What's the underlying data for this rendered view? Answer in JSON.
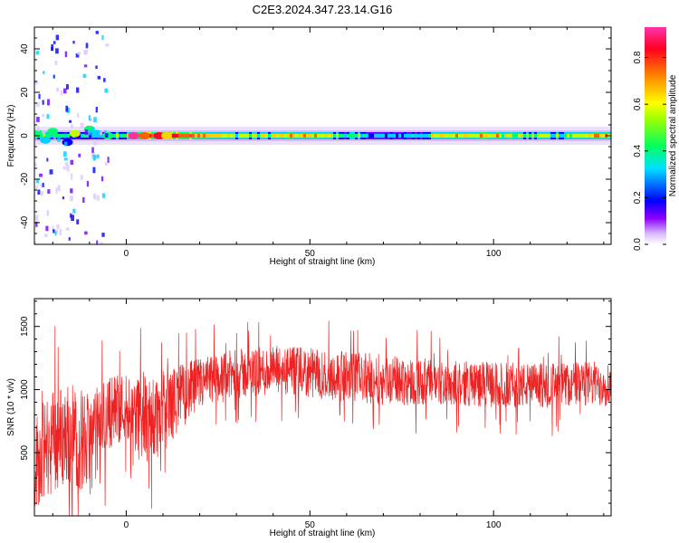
{
  "title": "C2E3.2024.347.23.14.G16",
  "chart_data": [
    {
      "type": "heatmap",
      "xlabel": "Height of straight line (km)",
      "ylabel": "Frequency (Hz)",
      "xlim": [
        -25,
        132
      ],
      "ylim": [
        -50,
        50
      ],
      "xticks": [
        0,
        50,
        100
      ],
      "yticks": [
        -40,
        -20,
        0,
        20,
        40
      ],
      "colorbar": {
        "label": "Normalized spectral amplitude",
        "range": [
          0,
          0.93
        ],
        "ticks": [
          0.0,
          0.2,
          0.4,
          0.6,
          0.8
        ],
        "colormap": [
          "#8c00ff",
          "#0000ff",
          "#00e0ff",
          "#00ff40",
          "#ffff00",
          "#ff8000",
          "#ff0040",
          "#ff33aa"
        ]
      },
      "band_center_hz": 0,
      "grid": false
    },
    {
      "type": "line",
      "xlabel": "Height of straight line (km)",
      "ylabel": "SNR (10 * v/v)",
      "xlim": [
        -25,
        132
      ],
      "ylim": [
        0,
        1720
      ],
      "xticks": [
        0,
        50,
        100
      ],
      "yticks": [
        500,
        1000,
        1500
      ],
      "color": "#ee2222",
      "envelope": {
        "x": [
          -25,
          -20,
          -15,
          -10,
          -5,
          0,
          5,
          10,
          15,
          20,
          25,
          30,
          40,
          50,
          60,
          70,
          80,
          90,
          100,
          110,
          120,
          132
        ],
        "mean": [
          420,
          600,
          650,
          560,
          820,
          880,
          750,
          820,
          950,
          1040,
          1090,
          1120,
          1150,
          1130,
          1100,
          1080,
          1060,
          1050,
          1040,
          1030,
          1040,
          1050
        ],
        "spread": [
          380,
          420,
          420,
          400,
          300,
          260,
          400,
          330,
          260,
          210,
          200,
          200,
          200,
          200,
          200,
          200,
          190,
          180,
          180,
          180,
          180,
          180
        ]
      },
      "grid": false
    }
  ]
}
